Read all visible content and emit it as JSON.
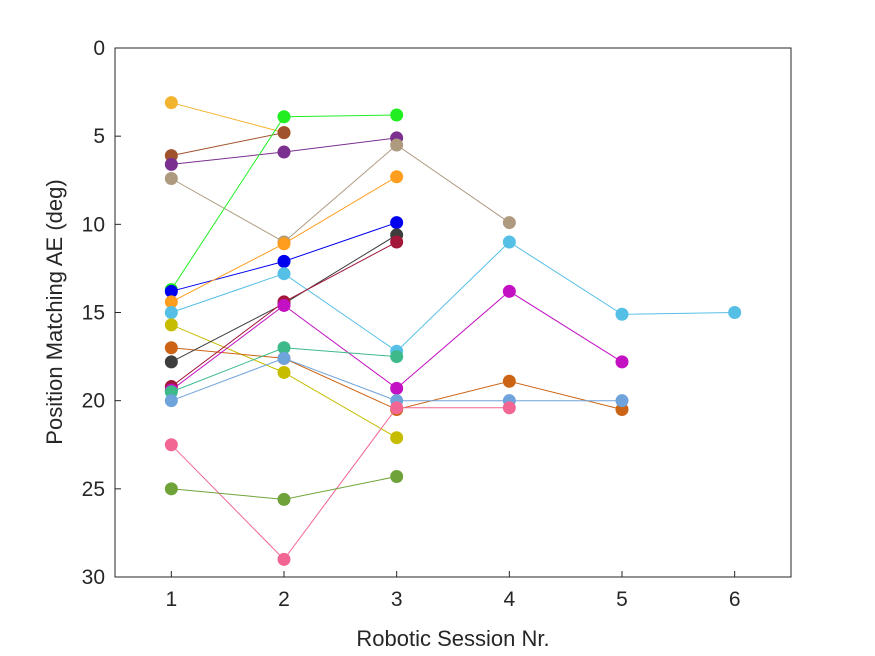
{
  "chart_data": {
    "type": "line",
    "xlabel": "Robotic Session Nr.",
    "ylabel": "Position Matching AE (deg)",
    "xlim": [
      0.5,
      6.5
    ],
    "ylim": [
      0,
      30
    ],
    "y_reversed": true,
    "grid": false,
    "legend": "none",
    "x_ticks": [
      "1",
      "2",
      "3",
      "4",
      "5",
      "6"
    ],
    "y_ticks": [
      "0",
      "5",
      "10",
      "15",
      "20",
      "25",
      "30"
    ],
    "series": [
      {
        "color": "#f2b32e",
        "points": [
          [
            1,
            3.1
          ],
          [
            2,
            4.8
          ]
        ]
      },
      {
        "color": "#a0522d",
        "points": [
          [
            1,
            6.1
          ],
          [
            2,
            4.8
          ]
        ]
      },
      {
        "color": "#7b2f8e",
        "points": [
          [
            1,
            6.6
          ],
          [
            2,
            5.9
          ],
          [
            3,
            5.1
          ]
        ]
      },
      {
        "color": "#ad9a7f",
        "points": [
          [
            1,
            7.4
          ],
          [
            2,
            11.0
          ],
          [
            3,
            5.5
          ],
          [
            4,
            9.9
          ]
        ]
      },
      {
        "color": "#21ee21",
        "points": [
          [
            1,
            13.7
          ],
          [
            2,
            3.9
          ],
          [
            3,
            3.8
          ]
        ]
      },
      {
        "color": "#0000ee",
        "points": [
          [
            1,
            13.8
          ],
          [
            2,
            12.1
          ],
          [
            3,
            9.9
          ]
        ]
      },
      {
        "color": "#ff9d1e",
        "points": [
          [
            1,
            14.4
          ],
          [
            2,
            11.1
          ],
          [
            3,
            7.3
          ]
        ]
      },
      {
        "color": "#55bfe6",
        "points": [
          [
            1,
            15.0
          ],
          [
            2,
            12.8
          ],
          [
            3,
            17.2
          ],
          [
            4,
            11.0
          ],
          [
            5,
            15.1
          ],
          [
            6,
            15.0
          ]
        ]
      },
      {
        "color": "#c6bd00",
        "points": [
          [
            1,
            15.7
          ],
          [
            2,
            18.4
          ],
          [
            3,
            22.1
          ]
        ]
      },
      {
        "color": "#cc6415",
        "points": [
          [
            1,
            17.0
          ],
          [
            2,
            17.6
          ],
          [
            3,
            20.5
          ],
          [
            4,
            18.9
          ],
          [
            5,
            20.5
          ]
        ]
      },
      {
        "color": "#3d3d3d",
        "points": [
          [
            1,
            17.8
          ],
          [
            2,
            14.5
          ],
          [
            3,
            10.6
          ]
        ]
      },
      {
        "color": "#a3173a",
        "points": [
          [
            1,
            19.2
          ],
          [
            2,
            14.4
          ],
          [
            3,
            11.0
          ]
        ]
      },
      {
        "color": "#c210c2",
        "points": [
          [
            1,
            19.4
          ],
          [
            2,
            14.6
          ],
          [
            3,
            19.3
          ],
          [
            4,
            13.8
          ],
          [
            5,
            17.8
          ]
        ]
      },
      {
        "color": "#3dba8a",
        "points": [
          [
            1,
            19.5
          ],
          [
            2,
            17.0
          ],
          [
            3,
            17.5
          ]
        ]
      },
      {
        "color": "#6fa3dc",
        "points": [
          [
            1,
            20.0
          ],
          [
            2,
            17.6
          ],
          [
            3,
            20.0
          ],
          [
            4,
            20.0
          ],
          [
            5,
            20.0
          ]
        ]
      },
      {
        "color": "#f26694",
        "points": [
          [
            1,
            22.5
          ],
          [
            2,
            29.0
          ],
          [
            3,
            20.4
          ],
          [
            4,
            20.4
          ]
        ]
      },
      {
        "color": "#6fa33a",
        "points": [
          [
            1,
            25.0
          ],
          [
            2,
            25.6
          ],
          [
            3,
            24.3
          ]
        ]
      }
    ]
  }
}
